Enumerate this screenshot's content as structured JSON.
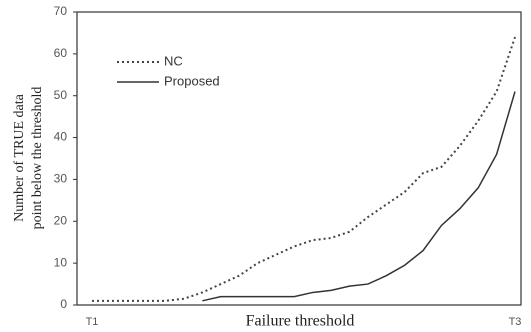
{
  "chart_data": {
    "type": "line",
    "xlabel": "Failure threshold",
    "ylabel": [
      "Number of TRUE data",
      "point below the threshold"
    ],
    "categories": [
      "T1",
      null,
      null,
      null,
      null,
      null,
      null,
      null,
      null,
      null,
      null,
      null,
      null,
      null,
      null,
      null,
      null,
      null,
      null,
      null,
      null,
      null,
      null,
      "T3"
    ],
    "series": [
      {
        "name": "NC",
        "color": "#444444",
        "style": "dotted",
        "values": [
          1,
          1,
          1,
          1,
          1,
          1.5,
          3,
          5,
          7,
          10,
          12,
          14,
          15.5,
          16,
          17.5,
          21,
          24,
          27,
          31.5,
          33,
          38,
          44,
          51,
          64
        ]
      },
      {
        "name": "Proposed",
        "color": "#333333",
        "style": "solid",
        "values": [
          null,
          null,
          null,
          null,
          null,
          null,
          1,
          2,
          2,
          2,
          2,
          2,
          3,
          3.5,
          4.5,
          5,
          7,
          9.5,
          13,
          19,
          23,
          28,
          36,
          51
        ]
      }
    ],
    "ylim": [
      0,
      70
    ],
    "yticks": [
      0,
      10,
      20,
      30,
      40,
      50,
      60,
      70
    ],
    "legend": "upper left"
  }
}
